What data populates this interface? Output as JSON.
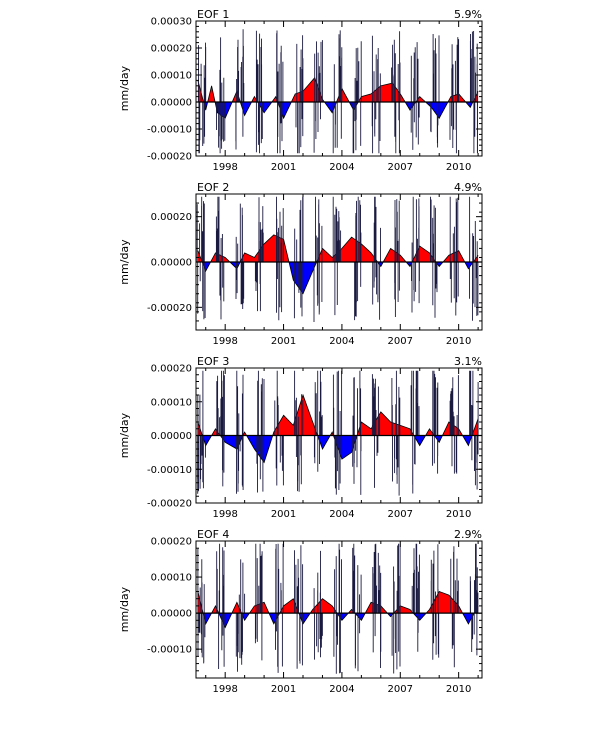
{
  "chart_data": [
    {
      "type": "area",
      "panel": "EOF 1",
      "title": "EOF 1",
      "variance_label": "5.9%",
      "ylabel": "mm/day",
      "ylim": [
        -0.0002,
        0.0003
      ],
      "ytick_labels": [
        "-0.00020",
        "-0.00010",
        "0.00000",
        "0.00010",
        "0.00020",
        "0.00030"
      ],
      "ytick_values": [
        -0.0002,
        -0.0001,
        0.0,
        0.0001,
        0.0002,
        0.0003
      ],
      "xlim": [
        1996.5,
        2011.2
      ],
      "xtick_labels": [
        "1998",
        "2001",
        "2004",
        "2007",
        "2010"
      ],
      "xtick_values": [
        1998,
        2001,
        2004,
        2007,
        2010
      ],
      "positive_color": "#ff0000",
      "negative_color": "#0000ff",
      "series": [
        {
          "x": [
            1996.6,
            1997.0,
            1997.3,
            1997.6,
            1998.0,
            1998.6,
            1999.0,
            1999.5,
            2000.0,
            2000.6,
            2001.0,
            2001.6,
            2002.0,
            2002.6,
            2003.0,
            2003.5,
            2004.0,
            2004.6,
            2005.0,
            2005.5,
            2006.0,
            2006.6,
            2007.0,
            2007.5,
            2008.0,
            2008.6,
            2009.0,
            2009.6,
            2010.0,
            2010.6,
            2011.0
          ],
          "values": [
            8e-05,
            -3e-05,
            6e-05,
            -4e-05,
            -6e-05,
            4e-05,
            -5e-05,
            2e-05,
            -4e-05,
            2e-05,
            -6e-05,
            3e-05,
            4e-05,
            9e-05,
            1e-05,
            -4e-05,
            5e-05,
            -3e-05,
            2e-05,
            3e-05,
            6e-05,
            7e-05,
            3e-05,
            -3e-05,
            2e-05,
            -2e-05,
            -6e-05,
            2e-05,
            3e-05,
            -2e-05,
            4e-05
          ]
        }
      ]
    },
    {
      "type": "area",
      "panel": "EOF 2",
      "title": "EOF 2",
      "variance_label": "4.9%",
      "ylabel": "mm/day",
      "ylim": [
        -0.0003,
        0.0003
      ],
      "ytick_labels": [
        "-0.00020",
        "0.00000",
        "0.00020"
      ],
      "ytick_values": [
        -0.0002,
        0.0,
        0.0002
      ],
      "xlim": [
        1996.5,
        2011.2
      ],
      "xtick_labels": [
        "1998",
        "2001",
        "2004",
        "2007",
        "2010"
      ],
      "xtick_values": [
        1998,
        2001,
        2004,
        2007,
        2010
      ],
      "positive_color": "#ff0000",
      "negative_color": "#0000ff",
      "series": [
        {
          "x": [
            1996.6,
            1997.0,
            1997.5,
            1998.0,
            1998.6,
            1999.0,
            1999.5,
            2000.0,
            2000.5,
            2001.0,
            2001.5,
            2002.0,
            2002.5,
            2003.0,
            2003.5,
            2004.0,
            2004.5,
            2005.0,
            2005.5,
            2006.0,
            2006.5,
            2007.0,
            2007.5,
            2008.0,
            2008.5,
            2009.0,
            2009.5,
            2010.0,
            2010.5,
            2011.0
          ],
          "values": [
            5e-05,
            -4e-05,
            4e-05,
            2e-05,
            -3e-05,
            4e-05,
            2e-05,
            8e-05,
            0.00012,
            0.0001,
            -8e-05,
            -0.00014,
            -4e-05,
            6e-05,
            2e-05,
            6e-05,
            0.00011,
            8e-05,
            4e-05,
            -2e-05,
            6e-05,
            3e-05,
            -2e-05,
            7e-05,
            4e-05,
            -2e-05,
            3e-05,
            5e-05,
            -3e-05,
            3e-05
          ]
        }
      ]
    },
    {
      "type": "area",
      "panel": "EOF 3",
      "title": "EOF 3",
      "variance_label": "3.1%",
      "ylabel": "mm/day",
      "ylim": [
        -0.0002,
        0.0002
      ],
      "ytick_labels": [
        "-0.00020",
        "-0.00010",
        "0.00000",
        "0.00010",
        "0.00020"
      ],
      "ytick_values": [
        -0.0002,
        -0.0001,
        0.0,
        0.0001,
        0.0002
      ],
      "xlim": [
        1996.5,
        2011.2
      ],
      "xtick_labels": [
        "1998",
        "2001",
        "2004",
        "2007",
        "2010"
      ],
      "xtick_values": [
        1998,
        2001,
        2004,
        2007,
        2010
      ],
      "positive_color": "#ff0000",
      "negative_color": "#0000ff",
      "series": [
        {
          "x": [
            1996.6,
            1997.0,
            1997.5,
            1998.0,
            1998.6,
            1999.0,
            1999.5,
            2000.0,
            2000.5,
            2001.0,
            2001.5,
            2002.0,
            2002.5,
            2003.0,
            2003.5,
            2004.0,
            2004.5,
            2005.0,
            2005.5,
            2006.0,
            2006.5,
            2007.0,
            2007.5,
            2008.0,
            2008.5,
            2009.0,
            2009.5,
            2010.0,
            2010.5,
            2011.0
          ],
          "values": [
            4e-05,
            -3e-05,
            2e-05,
            -2e-05,
            -4e-05,
            1e-05,
            -4e-05,
            -8e-05,
            1e-05,
            6e-05,
            3e-05,
            0.00012,
            4e-05,
            -4e-05,
            1e-05,
            -7e-05,
            -5e-05,
            4e-05,
            2e-05,
            7e-05,
            4e-05,
            3e-05,
            2e-05,
            -3e-05,
            2e-05,
            -2e-05,
            4e-05,
            2e-05,
            -3e-05,
            5e-05
          ]
        }
      ]
    },
    {
      "type": "area",
      "panel": "EOF 4",
      "title": "EOF 4",
      "variance_label": "2.9%",
      "ylabel": "mm/day",
      "ylim": [
        -0.00018,
        0.0002
      ],
      "ytick_labels": [
        "-0.00010",
        "0.00000",
        "0.00010",
        "0.00020"
      ],
      "ytick_values": [
        -0.0001,
        0.0,
        0.0001,
        0.0002
      ],
      "xlim": [
        1996.5,
        2011.2
      ],
      "xtick_labels": [
        "1998",
        "2001",
        "2004",
        "2007",
        "2010"
      ],
      "xtick_values": [
        1998,
        2001,
        2004,
        2007,
        2010
      ],
      "positive_color": "#ff0000",
      "negative_color": "#0000ff",
      "series": [
        {
          "x": [
            1996.6,
            1997.0,
            1997.5,
            1998.0,
            1998.6,
            1999.0,
            1999.5,
            2000.0,
            2000.5,
            2001.0,
            2001.5,
            2002.0,
            2002.5,
            2003.0,
            2003.5,
            2004.0,
            2004.5,
            2005.0,
            2005.5,
            2006.0,
            2006.5,
            2007.0,
            2007.5,
            2008.0,
            2008.5,
            2009.0,
            2009.5,
            2010.0,
            2010.5,
            2011.0
          ],
          "values": [
            6e-05,
            -3e-05,
            2e-05,
            -4e-05,
            3e-05,
            -2e-05,
            2e-05,
            3e-05,
            -3e-05,
            2e-05,
            4e-05,
            -3e-05,
            1e-05,
            4e-05,
            2e-05,
            -2e-05,
            1e-05,
            -2e-05,
            3e-05,
            2e-05,
            -1e-05,
            2e-05,
            1e-05,
            -2e-05,
            1e-05,
            6e-05,
            5e-05,
            2e-05,
            -3e-05,
            2e-05
          ]
        }
      ]
    }
  ]
}
